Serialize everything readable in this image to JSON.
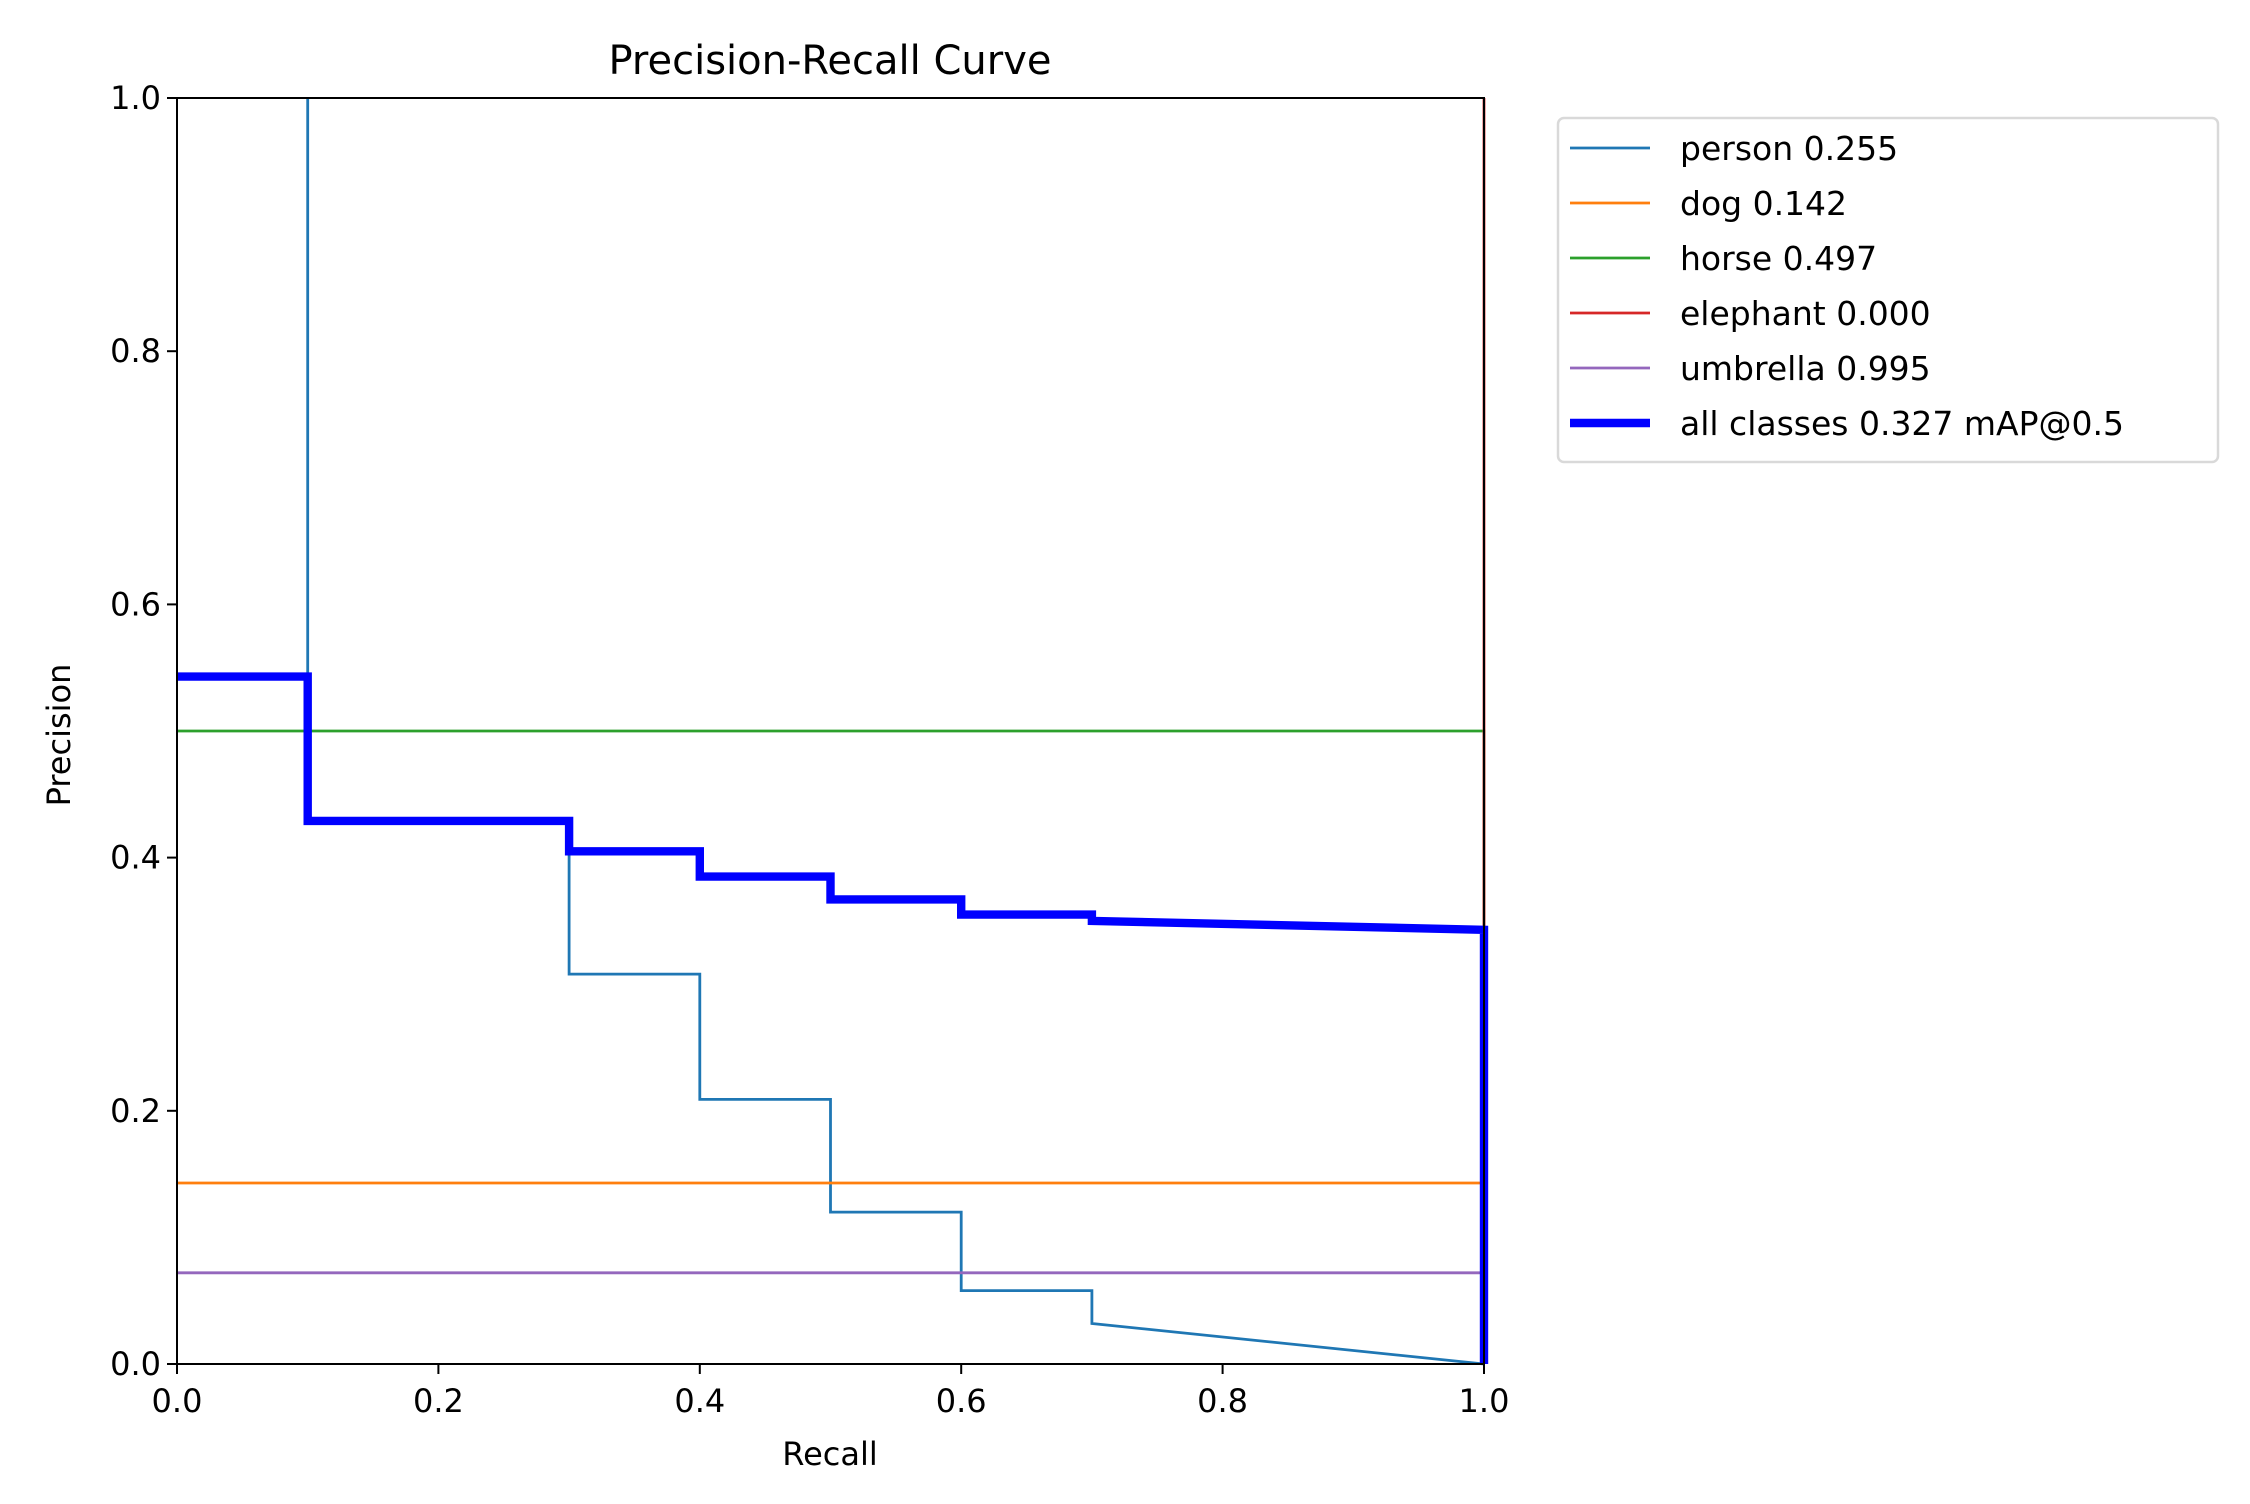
{
  "chart_data": {
    "type": "line",
    "title": "Precision-Recall Curve",
    "xlabel": "Recall",
    "ylabel": "Precision",
    "xlim": [
      0,
      1
    ],
    "ylim": [
      0,
      1
    ],
    "grid": false,
    "legend_position": "outside-top-right",
    "xticks": [
      "0.0",
      "0.2",
      "0.4",
      "0.6",
      "0.8",
      "1.0"
    ],
    "yticks": [
      "0.0",
      "0.2",
      "0.4",
      "0.6",
      "0.8",
      "1.0"
    ],
    "series": [
      {
        "name": "person 0.255",
        "color": "#1f77b4",
        "width": 1,
        "points": [
          [
            0.1,
            1.0
          ],
          [
            0.1,
            0.429
          ],
          [
            0.3,
            0.429
          ],
          [
            0.3,
            0.308
          ],
          [
            0.4,
            0.308
          ],
          [
            0.4,
            0.209
          ],
          [
            0.5,
            0.209
          ],
          [
            0.5,
            0.12
          ],
          [
            0.6,
            0.12
          ],
          [
            0.6,
            0.058
          ],
          [
            0.7,
            0.058
          ],
          [
            0.7,
            0.032
          ],
          [
            1.0,
            0.0
          ]
        ]
      },
      {
        "name": "dog 0.142",
        "color": "#ff7f0e",
        "width": 1,
        "points": [
          [
            0,
            0.143
          ],
          [
            1.0,
            0.143
          ]
        ]
      },
      {
        "name": "horse 0.497",
        "color": "#2ca02c",
        "width": 1,
        "points": [
          [
            0,
            0.5
          ],
          [
            1.0,
            0.5
          ],
          [
            1.0,
            0.0
          ]
        ]
      },
      {
        "name": "elephant 0.000",
        "color": "#d62728",
        "width": 1,
        "points": [
          [
            1.0,
            1.0
          ],
          [
            1.0,
            0.0
          ]
        ]
      },
      {
        "name": "umbrella 0.995",
        "color": "#9467bd",
        "width": 1,
        "points": [
          [
            0,
            0.072
          ],
          [
            1.0,
            0.072
          ]
        ]
      },
      {
        "name": "all classes 0.327 mAP@0.5",
        "color": "#0000ff",
        "width": 3,
        "points": [
          [
            0,
            0.543
          ],
          [
            0.1,
            0.543
          ],
          [
            0.1,
            0.429
          ],
          [
            0.3,
            0.429
          ],
          [
            0.3,
            0.405
          ],
          [
            0.4,
            0.405
          ],
          [
            0.4,
            0.385
          ],
          [
            0.5,
            0.385
          ],
          [
            0.5,
            0.367
          ],
          [
            0.6,
            0.367
          ],
          [
            0.6,
            0.355
          ],
          [
            0.7,
            0.355
          ],
          [
            0.7,
            0.35
          ],
          [
            1.0,
            0.343
          ],
          [
            1.0,
            0.0
          ]
        ]
      }
    ]
  }
}
